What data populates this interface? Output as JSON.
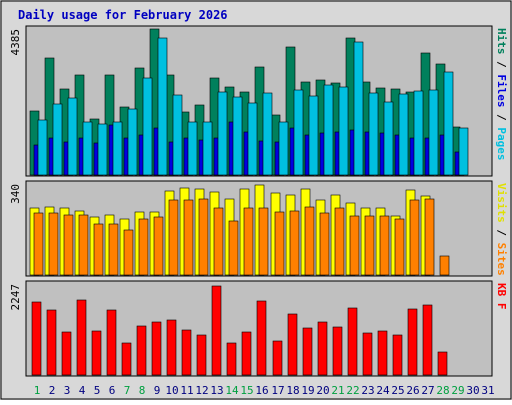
{
  "chart_data": {
    "type": "bar",
    "title": "Daily usage for February 2026",
    "days": [
      "1",
      "2",
      "3",
      "4",
      "5",
      "6",
      "7",
      "8",
      "9",
      "10",
      "11",
      "12",
      "13",
      "14",
      "15",
      "16",
      "17",
      "18",
      "19",
      "20",
      "21",
      "22",
      "23",
      "24",
      "25",
      "26",
      "27",
      "28",
      "29",
      "30",
      "31"
    ],
    "weekend_days": [
      "1",
      "7",
      "8",
      "14",
      "15",
      "21",
      "22",
      "28",
      "29"
    ],
    "panels": [
      {
        "id": "hits",
        "max_label": "4385",
        "ymax": 4385,
        "axis_label_parts": [
          {
            "text": "Pages",
            "color": "#00c0e0"
          },
          {
            "text": " / ",
            "color": "#000000"
          },
          {
            "text": "Files",
            "color": "#0000e0"
          },
          {
            "text": " / ",
            "color": "#000000"
          },
          {
            "text": "Hits",
            "color": "#00805c"
          }
        ],
        "series": [
          {
            "name": "Hits",
            "color": "#00805c",
            "values": [
              1920,
              3500,
              2580,
              3000,
              1680,
              3000,
              2030,
              3200,
              4385,
              3000,
              1900,
              2100,
              2900,
              2640,
              2500,
              3250,
              1800,
              3850,
              2800,
              2850,
              2750,
              4100,
              2780,
              2600,
              2580,
              2500,
              3650,
              3330,
              1440,
              null,
              null
            ]
          },
          {
            "name": "Files",
            "color": "#0000e0",
            "values": [
              900,
              1100,
              1000,
              1120,
              950,
              1500,
              1100,
              1200,
              1400,
              1000,
              1100,
              1050,
              1100,
              1600,
              1300,
              1020,
              1000,
              1400,
              1200,
              1250,
              1300,
              1350,
              1300,
              1250,
              1200,
              1100,
              1100,
              1200,
              700,
              null,
              null
            ]
          },
          {
            "name": "Pages",
            "color": "#00c0e0",
            "values": [
              1650,
              2120,
              2300,
              1580,
              1520,
              1580,
              1970,
              2900,
              4120,
              2400,
              1600,
              1580,
              2500,
              2330,
              2150,
              2450,
              1600,
              2550,
              2380,
              2700,
              2650,
              4000,
              2450,
              2200,
              2430,
              2520,
              2540,
              3080,
              1400,
              null,
              null
            ]
          }
        ]
      },
      {
        "id": "visits",
        "max_label": "340",
        "ymax": 340,
        "axis_label_parts": [
          {
            "text": "Sites",
            "color": "#ff8000"
          },
          {
            "text": " / ",
            "color": "#000000"
          },
          {
            "text": "Visits",
            "color": "#e0e000"
          }
        ],
        "series": [
          {
            "name": "Visits",
            "color": "#ffff00",
            "values": [
              250,
              255,
              250,
              240,
              215,
              225,
              210,
              235,
              235,
              315,
              325,
              322,
              310,
              285,
              320,
              335,
              305,
              300,
              320,
              282,
              300,
              270,
              250,
              250,
              220,
              318,
              295,
              null,
              null,
              null,
              null
            ]
          },
          {
            "name": "Sites",
            "color": "#ff8000",
            "values": [
              230,
              230,
              225,
              225,
              190,
              190,
              168,
              210,
              215,
              280,
              280,
              285,
              250,
              200,
              250,
              250,
              235,
              240,
              255,
              230,
              250,
              220,
              220,
              222,
              210,
              280,
              285,
              70,
              null,
              null,
              null
            ]
          }
        ]
      },
      {
        "id": "kbytes",
        "max_label": "2247",
        "ymax": 2247,
        "axis_label_parts": [
          {
            "text": "KB F",
            "color": "#ff0000"
          }
        ],
        "series": [
          {
            "name": "KB F",
            "color": "#ff0000",
            "values": [
              1800,
              1600,
              1050,
              1850,
              1080,
              1600,
              780,
              1200,
              1300,
              1350,
              1120,
              990,
              2200,
              800,
              1070,
              1820,
              830,
              1510,
              1160,
              1310,
              1180,
              1650,
              1040,
              1090,
              980,
              1630,
              1740,
              570,
              null,
              null,
              null
            ]
          }
        ]
      }
    ]
  },
  "colors": {
    "panel_bg": "#c0c0c0",
    "page_bg": "#d8d8d8",
    "title": "#0000c0",
    "weekday_label": "#000080",
    "weekend_label": "#00a040",
    "label_axis": "#000000"
  }
}
